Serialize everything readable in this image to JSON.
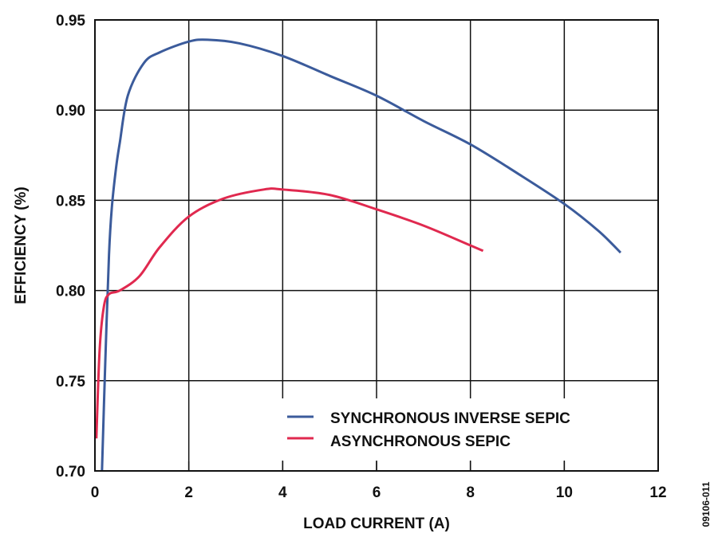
{
  "chart_data": {
    "type": "line",
    "title": "",
    "xlabel": "LOAD CURRENT (A)",
    "ylabel": "EFFICIENCY (%)",
    "xlim": [
      0,
      12
    ],
    "ylim": [
      0.7,
      0.95
    ],
    "xticks": [
      "0",
      "2",
      "4",
      "6",
      "8",
      "10",
      "12"
    ],
    "yticks": [
      "0.70",
      "0.75",
      "0.80",
      "0.85",
      "0.90",
      "0.95"
    ],
    "grid": true,
    "legend_position": "bottom-right",
    "figure_id": "09106-011",
    "series": [
      {
        "name": "SYNCHRONOUS INVERSE SEPIC",
        "color": "#3b5b9b",
        "x": [
          0.15,
          0.22,
          0.3,
          0.36,
          0.45,
          0.53,
          0.7,
          1.04,
          1.38,
          2.0,
          2.4,
          3.08,
          4.0,
          5.0,
          6.0,
          7.0,
          8.0,
          9.0,
          10.0,
          10.73,
          11.2
        ],
        "y": [
          0.7,
          0.76,
          0.82,
          0.846,
          0.868,
          0.882,
          0.908,
          0.926,
          0.932,
          0.938,
          0.939,
          0.937,
          0.93,
          0.919,
          0.908,
          0.894,
          0.881,
          0.865,
          0.848,
          0.833,
          0.821
        ]
      },
      {
        "name": "ASYNCHRONOUS SEPIC",
        "color": "#e0294f",
        "x": [
          0.03,
          0.1,
          0.19,
          0.3,
          0.53,
          0.95,
          1.38,
          2.0,
          2.74,
          3.6,
          4.0,
          5.0,
          6.0,
          7.0,
          8.0,
          8.27
        ],
        "y": [
          0.718,
          0.767,
          0.791,
          0.798,
          0.8,
          0.808,
          0.824,
          0.841,
          0.851,
          0.856,
          0.856,
          0.853,
          0.845,
          0.836,
          0.825,
          0.822
        ]
      }
    ]
  }
}
